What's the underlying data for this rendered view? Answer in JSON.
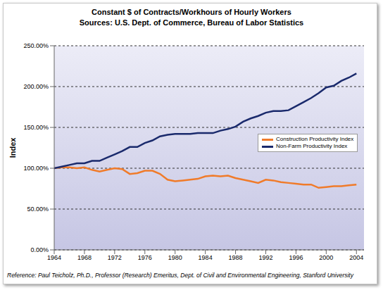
{
  "chart_data": {
    "type": "line",
    "title": "Constant $ of Contracts/Workhours of Hourly Workers",
    "subtitle": "Sources: U.S. Dept. of Commerce, Bureau of Labor Statistics",
    "y_label": "Index",
    "annotation": "Reference: Paul Teicholz, Ph.D., Professor (Research) Emeritus, Dept. of Civil and Environmental Engineering, Stanford University",
    "x": [
      1964,
      1965,
      1966,
      1967,
      1968,
      1969,
      1970,
      1971,
      1972,
      1973,
      1974,
      1975,
      1976,
      1977,
      1978,
      1979,
      1980,
      1981,
      1982,
      1983,
      1984,
      1985,
      1986,
      1987,
      1988,
      1989,
      1990,
      1991,
      1992,
      1993,
      1994,
      1995,
      1996,
      1997,
      1998,
      1999,
      2000,
      2001,
      2002,
      2003,
      2004
    ],
    "series": [
      {
        "name": "Construction Productivity Index",
        "color": "#f07b2a",
        "values": [
          100,
          101,
          101,
          100,
          101,
          98,
          96,
          98,
          100,
          99,
          93,
          94,
          97,
          97,
          93,
          86,
          84,
          85,
          86,
          87,
          90,
          91,
          90,
          91,
          88,
          86,
          84,
          82,
          86,
          85,
          83,
          82,
          81,
          80,
          80,
          76,
          77,
          78,
          78,
          79,
          80
        ]
      },
      {
        "name": "Non-Farm Productivity Index",
        "color": "#1a2a6c",
        "values": [
          100,
          102,
          104,
          106,
          106,
          109,
          109,
          113,
          117,
          121,
          126,
          126,
          131,
          134,
          139,
          141,
          142,
          142,
          142,
          143,
          143,
          143,
          146,
          148,
          151,
          157,
          161,
          164,
          168,
          170,
          170,
          171,
          176,
          181,
          186,
          192,
          199,
          201,
          207,
          211,
          216
        ]
      }
    ],
    "xlim": [
      1964,
      2005
    ],
    "xticks": [
      1964,
      1968,
      1972,
      1976,
      1980,
      1984,
      1988,
      1992,
      1996,
      2000,
      2004
    ],
    "ylim": [
      0,
      250
    ],
    "yticks": [
      {
        "value": 0,
        "label": "0.00%"
      },
      {
        "value": 50,
        "label": "50.00%"
      },
      {
        "value": 100,
        "label": "100.00%"
      },
      {
        "value": 150,
        "label": "150.00%"
      },
      {
        "value": 200,
        "label": "200.00%"
      },
      {
        "value": 250,
        "label": "250.00%"
      }
    ],
    "grid": true,
    "legend": "right"
  }
}
